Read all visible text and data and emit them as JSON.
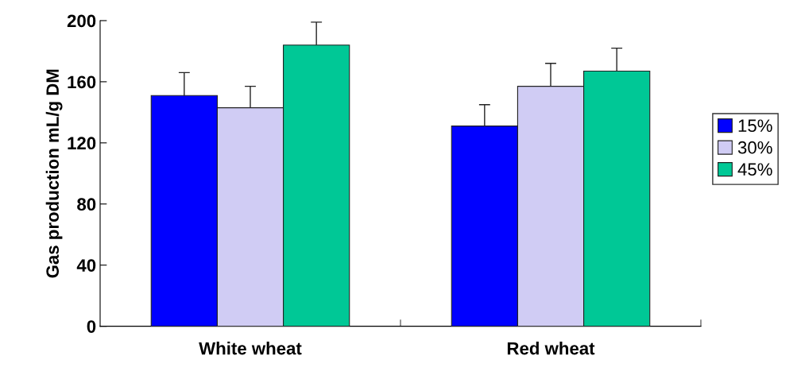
{
  "chart_data": {
    "type": "bar",
    "ylabel": "Gas production mL/g DM",
    "categories": [
      "White wheat",
      "Red wheat"
    ],
    "series": [
      {
        "name": "15%",
        "color": "#0000ff",
        "values": [
          151,
          131
        ],
        "errors": [
          15,
          14
        ]
      },
      {
        "name": "30%",
        "color": "#d0ccf4",
        "values": [
          143,
          157
        ],
        "errors": [
          14,
          15
        ]
      },
      {
        "name": "45%",
        "color": "#00c896",
        "values": [
          184,
          167
        ],
        "errors": [
          15,
          15
        ]
      }
    ],
    "ylim": [
      0,
      200
    ],
    "yticks": [
      0,
      40,
      80,
      120,
      160,
      200
    ],
    "grid": false,
    "legend": "right"
  }
}
